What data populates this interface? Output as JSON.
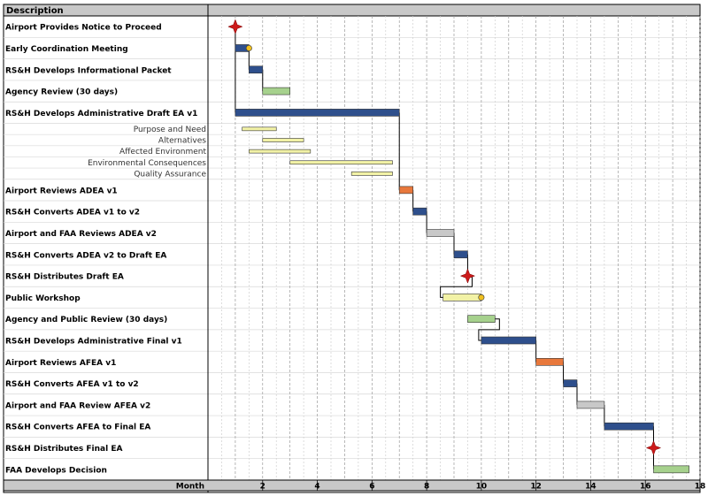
{
  "chart_data": {
    "type": "gantt",
    "header": "Description",
    "xlabel": "Month",
    "xlim": [
      0,
      18
    ],
    "x_ticks": [
      2,
      4,
      6,
      8,
      10,
      12,
      14,
      16,
      18
    ],
    "grid": true,
    "colors": {
      "rsh": "#2e4f8c",
      "review": "#a6d18d",
      "sub": "#f2f2a6",
      "airport": "#e8783c",
      "faa": "#c8c8c8",
      "milestone": "#cc1a1a",
      "meeting": "#f0c020",
      "header_bg": "#c8c8c8"
    },
    "tasks": [
      {
        "label": "Airport Provides Notice to Proceed",
        "style": "main",
        "kind": "milestone",
        "at": 1.0
      },
      {
        "label": "Early Coordination Meeting",
        "style": "main",
        "kind": "bar",
        "start": 1.0,
        "end": 1.5,
        "color": "rsh",
        "end_marker": "meeting"
      },
      {
        "label": "RS&H Develops Informational Packet",
        "style": "main",
        "kind": "bar",
        "start": 1.5,
        "end": 2.0,
        "color": "rsh"
      },
      {
        "label": "Agency Review (30 days)",
        "style": "main",
        "kind": "bar",
        "start": 2.0,
        "end": 3.0,
        "color": "review"
      },
      {
        "label": "RS&H Develops Administrative Draft EA v1",
        "style": "main",
        "kind": "bar",
        "start": 1.0,
        "end": 7.0,
        "color": "rsh"
      },
      {
        "label": "Purpose and Need",
        "style": "sub",
        "kind": "bar",
        "start": 1.25,
        "end": 2.5,
        "color": "sub"
      },
      {
        "label": "Alternatives",
        "style": "sub",
        "kind": "bar",
        "start": 2.0,
        "end": 3.5,
        "color": "sub"
      },
      {
        "label": "Affected Environment",
        "style": "sub",
        "kind": "bar",
        "start": 1.5,
        "end": 3.75,
        "color": "sub"
      },
      {
        "label": "Environmental Consequences",
        "style": "sub",
        "kind": "bar",
        "start": 3.0,
        "end": 6.75,
        "color": "sub"
      },
      {
        "label": "Quality Assurance",
        "style": "sub",
        "kind": "bar",
        "start": 5.25,
        "end": 6.75,
        "color": "sub"
      },
      {
        "label": "Airport Reviews ADEA v1",
        "style": "main",
        "kind": "bar",
        "start": 7.0,
        "end": 7.5,
        "color": "airport"
      },
      {
        "label": "RS&H Converts ADEA v1 to v2",
        "style": "main",
        "kind": "bar",
        "start": 7.5,
        "end": 8.0,
        "color": "rsh"
      },
      {
        "label": "Airport and FAA Reviews ADEA v2",
        "style": "main",
        "kind": "bar",
        "start": 8.0,
        "end": 9.0,
        "color": "faa"
      },
      {
        "label": "RS&H Converts ADEA v2 to Draft EA",
        "style": "main",
        "kind": "bar",
        "start": 9.0,
        "end": 9.5,
        "color": "rsh"
      },
      {
        "label": "RS&H Distributes Draft EA",
        "style": "main",
        "kind": "milestone",
        "at": 9.5
      },
      {
        "label": "Public Workshop",
        "style": "main",
        "kind": "bar",
        "start": 8.6,
        "end": 10.0,
        "color": "sub",
        "end_marker": "meeting"
      },
      {
        "label": "Agency and Public Review (30 days)",
        "style": "main",
        "kind": "bar",
        "start": 9.5,
        "end": 10.5,
        "color": "review"
      },
      {
        "label": "RS&H Develops Administrative Final v1",
        "style": "main",
        "kind": "bar",
        "start": 10.0,
        "end": 12.0,
        "color": "rsh"
      },
      {
        "label": "Airport Reviews AFEA v1",
        "style": "main",
        "kind": "bar",
        "start": 12.0,
        "end": 13.0,
        "color": "airport"
      },
      {
        "label": "RS&H Converts AFEA v1 to v2",
        "style": "main",
        "kind": "bar",
        "start": 13.0,
        "end": 13.5,
        "color": "rsh"
      },
      {
        "label": "Airport and FAA Review AFEA v2",
        "style": "main",
        "kind": "bar",
        "start": 13.5,
        "end": 14.5,
        "color": "faa"
      },
      {
        "label": "RS&H Converts AFEA to Final EA",
        "style": "main",
        "kind": "bar",
        "start": 14.5,
        "end": 16.3,
        "color": "rsh"
      },
      {
        "label": "RS&H Distributes Final EA",
        "style": "main",
        "kind": "milestone",
        "at": 16.3
      },
      {
        "label": "FAA Develops Decision",
        "style": "main",
        "kind": "bar",
        "start": 16.3,
        "end": 17.6,
        "color": "review"
      }
    ],
    "connectors": [
      {
        "from": 1,
        "to": 2
      },
      {
        "from": 2,
        "to": 3
      },
      {
        "from": 4,
        "to": 10
      },
      {
        "from": 10,
        "to": 11
      },
      {
        "from": 11,
        "to": 12
      },
      {
        "from": 12,
        "to": 13
      },
      {
        "from": 13,
        "to": 14
      },
      {
        "from": 14,
        "to": 15
      },
      {
        "from": 16,
        "to": 17
      },
      {
        "from": 17,
        "to": 18
      },
      {
        "from": 18,
        "to": 19
      },
      {
        "from": 19,
        "to": 20
      },
      {
        "from": 20,
        "to": 21
      },
      {
        "from": 21,
        "to": 22
      },
      {
        "from": 22,
        "to": 23
      }
    ]
  }
}
